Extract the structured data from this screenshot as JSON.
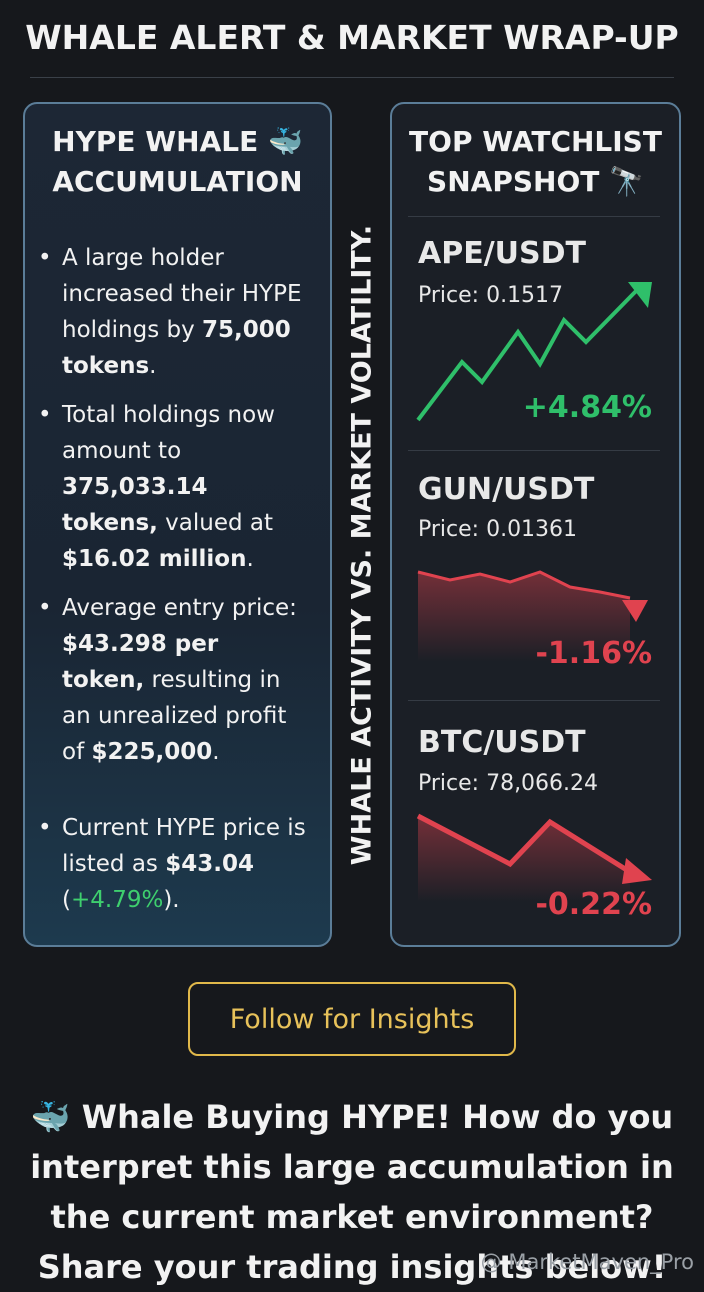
{
  "header": {
    "title": "WHALE ALERT & MARKET WRAP-UP"
  },
  "left_panel": {
    "title": [
      "HYPE WHALE 🐳",
      "ACCUMULATION"
    ],
    "bullets": [
      [
        {
          "text": "A large holder increased their HYPE holdings by "
        },
        {
          "text": "75,000 tokens",
          "weight": "bold"
        },
        {
          "text": "."
        }
      ],
      [
        {
          "text": "Total holdings now amount to "
        },
        {
          "text": "375,033.14 tokens,",
          "weight": "bold"
        },
        {
          "text": " valued at "
        },
        {
          "text": "$16.02 million",
          "weight": "bold"
        },
        {
          "text": "."
        }
      ],
      [
        {
          "text": "Average entry price: "
        },
        {
          "text": "$43.298 per token,",
          "weight": "bold"
        },
        {
          "text": " resulting in an unrealized profit of "
        },
        {
          "text": "$225,000",
          "weight": "bold"
        },
        {
          "text": "."
        }
      ],
      [
        {
          "text": "Current HYPE price is listed as "
        },
        {
          "text": "$43.04",
          "weight": "bold"
        },
        {
          "text": " ("
        },
        {
          "text": "+4.79%",
          "color": "#3ecf6e"
        },
        {
          "text": ")."
        }
      ]
    ]
  },
  "side_label": "WHALE ACTIVITY VS. MARKET VOLATILITY.",
  "right_panel": {
    "title": [
      "TOP WATCHLIST",
      "SNAPSHOT 🔭"
    ],
    "items": [
      {
        "pair": "APE/USDT",
        "price": "Price: 0.1517",
        "change": "+4.84%",
        "color": "#2fbf6a"
      },
      {
        "pair": "GUN/USDT",
        "price": "Price: 0.01361",
        "change": "-1.16%",
        "color": "#e0434f"
      },
      {
        "pair": "BTC/USDT",
        "price": "Price: 78,066.24",
        "change": "-0.22%",
        "color": "#e0434f"
      }
    ]
  },
  "button": "Follow for Insights",
  "footer": {
    "text": "🐳 Whale Buying HYPE! How do you interpret this large accumulation in the current market environment? Share your trading insights below!",
    "watermark": "@ MarketMaven_Pro"
  }
}
